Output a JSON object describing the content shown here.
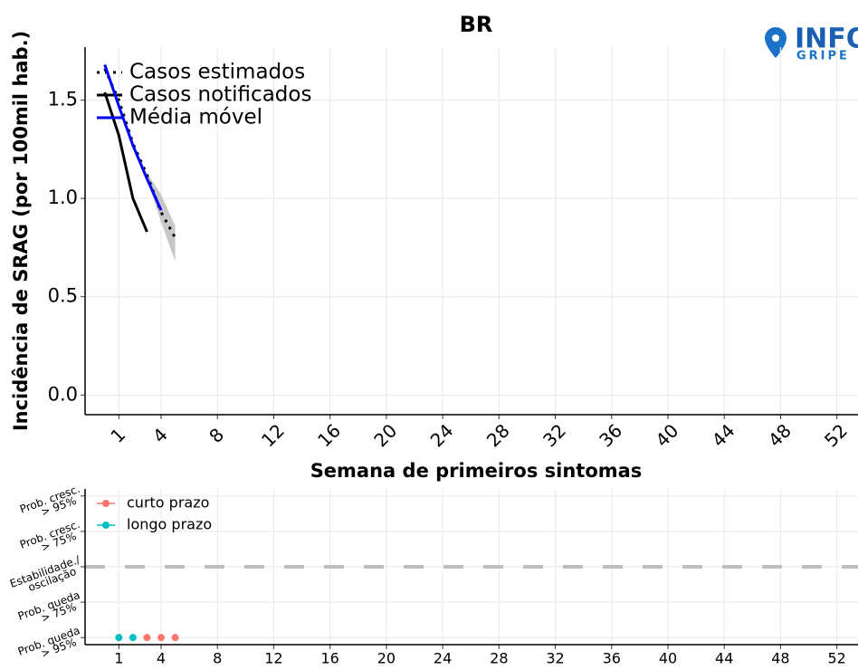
{
  "logo": {
    "line1": "INFO",
    "line2": "GRIPE"
  },
  "chart_data": [
    {
      "type": "line",
      "title": "BR",
      "xlabel": "Semana de primeiros sintomas",
      "ylabel": "Incidência de SRAG (por 100mil hab.)",
      "xlim": [
        -1.4,
        53.5
      ],
      "ylim": [
        -0.1,
        1.77
      ],
      "xticks": [
        1,
        4,
        8,
        12,
        16,
        20,
        24,
        28,
        32,
        36,
        40,
        44,
        48,
        52
      ],
      "yticks": [
        {
          "value": 0,
          "label": "0.0"
        },
        {
          "value": 0.5,
          "label": "0.5"
        },
        {
          "value": 1,
          "label": "1.0"
        },
        {
          "value": 1.5,
          "label": "1.5"
        }
      ],
      "grid": true,
      "legend": "top-left",
      "band_color": "#bebebe",
      "series": [
        {
          "name": "Casos estimados",
          "color": "#000000",
          "style": "dotted",
          "x": [
            0,
            1,
            2,
            3,
            4,
            5
          ],
          "values": [
            1.66,
            1.5,
            1.28,
            1.12,
            0.93,
            0.8
          ],
          "lower": [
            null,
            null,
            null,
            1.1,
            0.88,
            0.68
          ],
          "upper": [
            null,
            null,
            null,
            1.13,
            1.02,
            0.86
          ]
        },
        {
          "name": "Casos notificados",
          "color": "#000000",
          "style": "solid",
          "x": [
            0,
            1,
            2,
            3
          ],
          "values": [
            1.54,
            1.32,
            1.0,
            0.83
          ]
        },
        {
          "name": "Média móvel",
          "color": "#0000ff",
          "style": "solid",
          "x": [
            0,
            1,
            2,
            3,
            4
          ],
          "values": [
            1.68,
            1.47,
            1.27,
            1.1,
            0.94
          ]
        }
      ]
    },
    {
      "type": "scatter",
      "xlim": [
        -1.4,
        53.5
      ],
      "ylim": [
        -2.2,
        2.2
      ],
      "xticks": [
        1,
        4,
        8,
        12,
        16,
        20,
        24,
        28,
        32,
        36,
        40,
        44,
        48,
        52
      ],
      "yticks": [
        {
          "value": 2,
          "label": [
            "Prob. cresc.",
            "> 95%"
          ]
        },
        {
          "value": 1,
          "label": [
            "Prob. cresc.",
            "> 75%"
          ]
        },
        {
          "value": 0,
          "label": [
            "Estabilidade./",
            "oscilação"
          ]
        },
        {
          "value": -1,
          "label": [
            "Prob. queda",
            "> 75%"
          ]
        },
        {
          "value": -2,
          "label": [
            "Prob. queda",
            "> 95%"
          ]
        }
      ],
      "grid": true,
      "legend": "top-left",
      "hline": 0,
      "hline_color": "#bebebe",
      "series": [
        {
          "name": "curto prazo",
          "color": "#F8766D",
          "x": [
            3,
            4,
            5
          ],
          "values": [
            -2,
            -2,
            -2
          ]
        },
        {
          "name": "longo prazo",
          "color": "#00BFC4",
          "x": [
            1,
            2
          ],
          "values": [
            -2,
            -2
          ]
        }
      ]
    }
  ]
}
